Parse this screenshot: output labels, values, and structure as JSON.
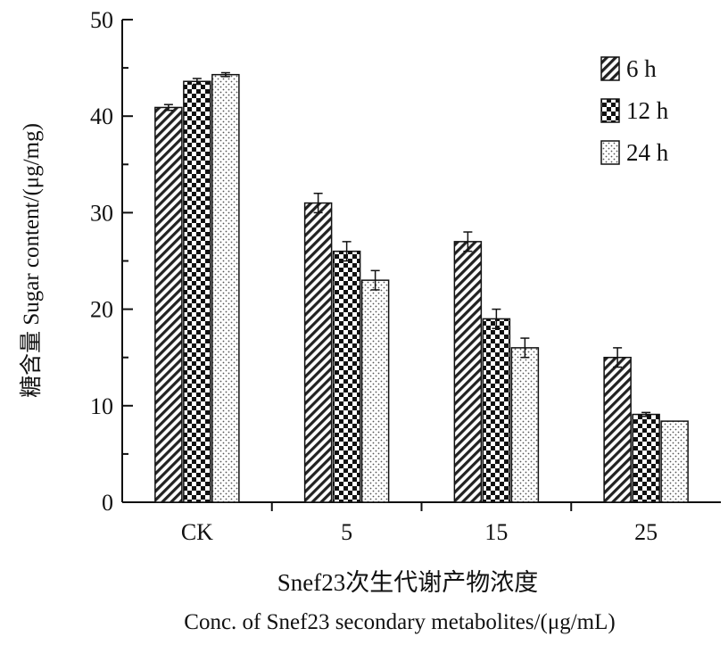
{
  "chart_data": {
    "type": "bar",
    "categories": [
      "CK",
      "5",
      "15",
      "25"
    ],
    "series": [
      {
        "name": "6 h",
        "values": [
          40.9,
          31.0,
          27.0,
          15.0
        ],
        "errors": [
          0.3,
          1.0,
          1.0,
          1.0
        ],
        "pattern": "diagonal-hatch"
      },
      {
        "name": "12 h",
        "values": [
          43.6,
          26.0,
          19.0,
          9.1
        ],
        "errors": [
          0.3,
          1.0,
          1.0,
          0.2
        ],
        "pattern": "checkerboard"
      },
      {
        "name": "24 h",
        "values": [
          44.3,
          23.0,
          16.0,
          8.4
        ],
        "errors": [
          0.2,
          1.0,
          1.0,
          0.0
        ],
        "pattern": "dotted"
      }
    ],
    "ylabel": "糖含量 Sugar content/(μg/mg)",
    "xlabel_cn": "Snef23次生代谢产物浓度",
    "xlabel_en": "Conc. of Snef23 secondary metabolites/(μg/mL)",
    "ylim": [
      0,
      50
    ],
    "yticks": [
      0,
      10,
      20,
      30,
      40,
      50
    ],
    "grid": false,
    "legend_position": "top-right"
  }
}
